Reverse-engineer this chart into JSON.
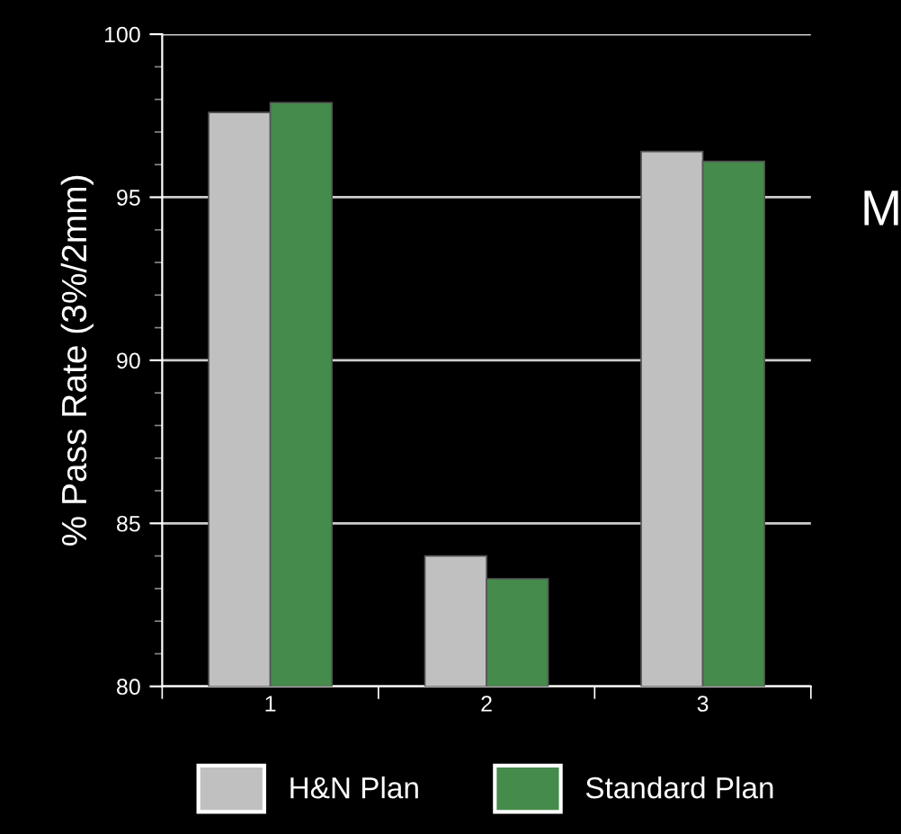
{
  "chart_data": {
    "type": "bar",
    "ylabel": "% Pass Rate (3%/2mm)",
    "categories": [
      "1",
      "2",
      "3"
    ],
    "series": [
      {
        "name": "H&N Plan",
        "color": "#c0c0c0",
        "values": [
          97.6,
          84.0,
          96.4
        ]
      },
      {
        "name": "Standard Plan",
        "color": "#458b4b",
        "values": [
          97.9,
          83.3,
          96.1
        ]
      }
    ],
    "ylim": [
      80,
      100
    ],
    "yticks": [
      80,
      85,
      90,
      95,
      100
    ],
    "grid": "y",
    "legend": "bottom",
    "annotations": [
      "M"
    ]
  }
}
